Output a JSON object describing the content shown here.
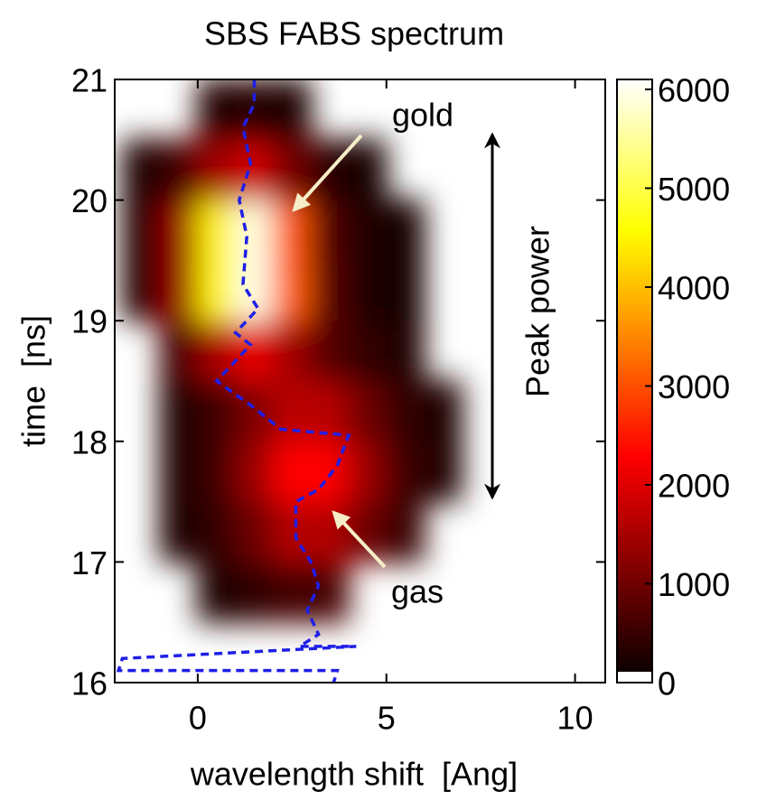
{
  "chart_data": {
    "type": "heatmap",
    "title": "SBS FABS spectrum",
    "x_label": "wavelength shift  [Ang]",
    "y_label": "time  [ns]",
    "x": [
      -1.5,
      -0.5,
      0.5,
      1.5,
      2.5,
      3.5,
      4.5,
      5.5,
      6.5
    ],
    "y": [
      16.75,
      17.25,
      17.75,
      18.25,
      18.75,
      19.25,
      19.75,
      20.25,
      20.75
    ],
    "z": [
      [
        null,
        null,
        270,
        420,
        610,
        610,
        null,
        null,
        null
      ],
      [
        null,
        240,
        440,
        970,
        1610,
        1610,
        970,
        440,
        null
      ],
      [
        null,
        260,
        560,
        1370,
        2340,
        2340,
        1370,
        560,
        260
      ],
      [
        null,
        270,
        540,
        1110,
        1680,
        1630,
        970,
        440,
        240
      ],
      [
        null,
        550,
        1510,
        2090,
        1440,
        760,
        430,
        270,
        null
      ],
      [
        320,
        1370,
        4480,
        5960,
        3120,
        770,
        260,
        210,
        null
      ],
      [
        320,
        1370,
        4470,
        5930,
        3070,
        720,
        240,
        200,
        null
      ],
      [
        230,
        540,
        1440,
        1870,
        1030,
        350,
        210,
        null,
        null
      ],
      [
        null,
        null,
        300,
        340,
        270,
        null,
        null,
        null,
        null
      ]
    ],
    "colormap": "hot",
    "clim": [
      0,
      6100
    ],
    "cticks": [
      0,
      1000,
      2000,
      3000,
      4000,
      5000,
      6000
    ],
    "xlim": [
      -2.2,
      10.8
    ],
    "ylim": [
      16,
      21
    ],
    "xticks": [
      0,
      5,
      10
    ],
    "yticks": [
      16,
      17,
      18,
      19,
      20,
      21
    ],
    "series": [
      {
        "color": "#1f1fe6",
        "dashed": true,
        "x": [
          1.5,
          1.5,
          1.2,
          1.4,
          1.1,
          1.3,
          1.2,
          1.6,
          1.0,
          1.4,
          0.5,
          1.4,
          2.2,
          4.0,
          3.7,
          3.2,
          2.6,
          2.6,
          3.0,
          3.2,
          2.9,
          3.2,
          2.7,
          4.2,
          -2.0,
          -2.1,
          3.7,
          3.6
        ],
        "y": [
          21.0,
          20.8,
          20.6,
          20.3,
          20.0,
          19.7,
          19.3,
          19.1,
          18.9,
          18.8,
          18.5,
          18.3,
          18.1,
          18.05,
          17.8,
          17.6,
          17.5,
          17.2,
          17.0,
          16.8,
          16.6,
          16.4,
          16.3,
          16.3,
          16.2,
          16.1,
          16.1,
          16.0
        ]
      }
    ],
    "annotations": [
      {
        "text": "gold"
      },
      {
        "text": "gas"
      },
      {
        "text": "Peak power"
      }
    ]
  }
}
